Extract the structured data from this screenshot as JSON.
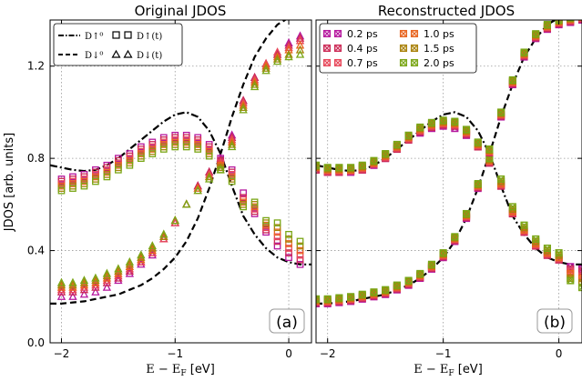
{
  "figure": {
    "ylabel": "JDOS [arb. units]",
    "xlabel": "E − E",
    "xlabel_sub": "F",
    "xlabel_unit": " [eV]"
  },
  "chart_data": [
    {
      "type": "scatter",
      "title": "Original JDOS",
      "panel_label": "(a)",
      "xlim": [
        -2.1,
        0.2
      ],
      "ylim": [
        0.0,
        1.4
      ],
      "xticks": [
        -2,
        -1,
        0
      ],
      "yticks": [
        0.0,
        0.4,
        0.8,
        1.2
      ],
      "grid": true,
      "legend_position": "top-left",
      "legend": [
        {
          "label": "D↑⁰",
          "style": "dashdot"
        },
        {
          "label": "D↓⁰",
          "style": "dashed"
        },
        {
          "label": "D↑(t)",
          "marker": "square"
        },
        {
          "label": "D↓(t)",
          "marker": "triangle"
        }
      ],
      "x": [
        -2.0,
        -1.9,
        -1.8,
        -1.7,
        -1.6,
        -1.5,
        -1.4,
        -1.3,
        -1.2,
        -1.1,
        -1.0,
        -0.9,
        -0.8,
        -0.7,
        -0.6,
        -0.5,
        -0.4,
        -0.3,
        -0.2,
        -0.1,
        0.0,
        0.1
      ],
      "series": [
        {
          "name": "0.2 ps",
          "color": "#b5179e",
          "up": [
            0.71,
            0.72,
            0.73,
            0.75,
            0.77,
            0.8,
            0.82,
            0.85,
            0.87,
            0.89,
            0.9,
            0.9,
            0.89,
            0.86,
            0.8,
            0.75,
            0.65,
            0.56,
            0.48,
            0.42,
            0.37,
            0.34
          ],
          "down": [
            0.2,
            0.2,
            0.21,
            0.22,
            0.24,
            0.27,
            0.3,
            0.34,
            0.38,
            0.45,
            0.52,
            0.6,
            0.68,
            0.74,
            0.8,
            0.9,
            1.05,
            1.15,
            1.2,
            1.25,
            1.3,
            1.33
          ]
        },
        {
          "name": "0.4 ps",
          "color": "#cc2a56",
          "up": [
            0.7,
            0.71,
            0.72,
            0.74,
            0.76,
            0.79,
            0.81,
            0.84,
            0.86,
            0.88,
            0.89,
            0.89,
            0.88,
            0.85,
            0.79,
            0.74,
            0.63,
            0.57,
            0.49,
            0.44,
            0.39,
            0.36
          ],
          "down": [
            0.22,
            0.22,
            0.23,
            0.24,
            0.26,
            0.28,
            0.31,
            0.35,
            0.39,
            0.45,
            0.52,
            0.6,
            0.68,
            0.74,
            0.79,
            0.89,
            1.05,
            1.15,
            1.21,
            1.25,
            1.29,
            1.32
          ]
        },
        {
          "name": "0.7 ps",
          "color": "#e8475a",
          "up": [
            0.69,
            0.7,
            0.71,
            0.73,
            0.75,
            0.78,
            0.8,
            0.83,
            0.85,
            0.87,
            0.88,
            0.88,
            0.87,
            0.84,
            0.78,
            0.73,
            0.62,
            0.58,
            0.5,
            0.46,
            0.41,
            0.38
          ],
          "down": [
            0.23,
            0.23,
            0.24,
            0.25,
            0.27,
            0.29,
            0.32,
            0.35,
            0.39,
            0.45,
            0.52,
            0.6,
            0.67,
            0.73,
            0.78,
            0.88,
            1.04,
            1.14,
            1.21,
            1.26,
            1.28,
            1.31
          ]
        },
        {
          "name": "1.0 ps",
          "color": "#e8641e",
          "up": [
            0.68,
            0.69,
            0.7,
            0.72,
            0.74,
            0.77,
            0.79,
            0.82,
            0.84,
            0.86,
            0.87,
            0.87,
            0.86,
            0.83,
            0.77,
            0.72,
            0.61,
            0.59,
            0.51,
            0.48,
            0.43,
            0.4
          ],
          "down": [
            0.24,
            0.24,
            0.25,
            0.26,
            0.28,
            0.3,
            0.33,
            0.36,
            0.4,
            0.46,
            0.53,
            0.6,
            0.67,
            0.72,
            0.77,
            0.87,
            1.03,
            1.13,
            1.2,
            1.24,
            1.27,
            1.29
          ]
        },
        {
          "name": "1.5 ps",
          "color": "#a9820a",
          "up": [
            0.67,
            0.68,
            0.69,
            0.71,
            0.73,
            0.76,
            0.78,
            0.81,
            0.83,
            0.85,
            0.86,
            0.86,
            0.85,
            0.82,
            0.76,
            0.71,
            0.6,
            0.6,
            0.52,
            0.5,
            0.45,
            0.42
          ],
          "down": [
            0.25,
            0.25,
            0.26,
            0.27,
            0.29,
            0.31,
            0.34,
            0.37,
            0.41,
            0.46,
            0.53,
            0.6,
            0.66,
            0.72,
            0.76,
            0.86,
            1.02,
            1.12,
            1.19,
            1.23,
            1.25,
            1.27
          ]
        },
        {
          "name": "2.0 ps",
          "color": "#7aa616",
          "up": [
            0.66,
            0.67,
            0.68,
            0.7,
            0.72,
            0.75,
            0.77,
            0.8,
            0.82,
            0.84,
            0.85,
            0.85,
            0.84,
            0.81,
            0.75,
            0.7,
            0.59,
            0.61,
            0.53,
            0.52,
            0.47,
            0.44
          ],
          "down": [
            0.26,
            0.26,
            0.27,
            0.28,
            0.3,
            0.32,
            0.35,
            0.38,
            0.42,
            0.47,
            0.53,
            0.6,
            0.66,
            0.71,
            0.75,
            0.85,
            1.01,
            1.11,
            1.18,
            1.22,
            1.24,
            1.25
          ]
        }
      ],
      "reference_curves": {
        "x": [
          -2.1,
          -2.0,
          -1.9,
          -1.8,
          -1.7,
          -1.6,
          -1.5,
          -1.4,
          -1.3,
          -1.2,
          -1.1,
          -1.0,
          -0.9,
          -0.8,
          -0.7,
          -0.6,
          -0.5,
          -0.4,
          -0.3,
          -0.2,
          -0.1,
          0.0,
          0.1,
          0.2
        ],
        "up": [
          0.77,
          0.76,
          0.75,
          0.745,
          0.75,
          0.77,
          0.8,
          0.84,
          0.88,
          0.92,
          0.96,
          0.99,
          1.0,
          0.98,
          0.92,
          0.82,
          0.68,
          0.55,
          0.47,
          0.41,
          0.37,
          0.35,
          0.34,
          0.34
        ],
        "down": [
          0.17,
          0.17,
          0.175,
          0.18,
          0.19,
          0.2,
          0.21,
          0.23,
          0.25,
          0.28,
          0.32,
          0.37,
          0.44,
          0.54,
          0.67,
          0.82,
          0.98,
          1.12,
          1.24,
          1.32,
          1.38,
          1.41,
          1.42,
          1.43
        ]
      }
    },
    {
      "type": "scatter",
      "title": "Reconstructed JDOS",
      "panel_label": "(b)",
      "xlim": [
        -2.1,
        0.2
      ],
      "ylim": [
        0.0,
        1.4
      ],
      "xticks": [
        -2,
        -1,
        0
      ],
      "yticks": [
        0.0,
        0.4,
        0.8,
        1.2
      ],
      "grid": true,
      "legend_position": "top-left",
      "legend": [
        {
          "label": "0.2 ps",
          "color": "#b5179e"
        },
        {
          "label": "0.4 ps",
          "color": "#cc2a56"
        },
        {
          "label": "0.7 ps",
          "color": "#e8475a"
        },
        {
          "label": "1.0 ps",
          "color": "#e8641e"
        },
        {
          "label": "1.5 ps",
          "color": "#a9820a"
        },
        {
          "label": "2.0 ps",
          "color": "#7aa616"
        }
      ],
      "x": [
        -2.1,
        -2.0,
        -1.9,
        -1.8,
        -1.7,
        -1.6,
        -1.5,
        -1.4,
        -1.3,
        -1.2,
        -1.1,
        -1.0,
        -0.9,
        -0.8,
        -0.7,
        -0.6,
        -0.5,
        -0.4,
        -0.3,
        -0.2,
        -0.1,
        0.0,
        0.1,
        0.2
      ],
      "series": [
        {
          "name": "0.2 ps",
          "color": "#b5179e",
          "up": [
            0.75,
            0.74,
            0.74,
            0.74,
            0.75,
            0.77,
            0.8,
            0.84,
            0.88,
            0.91,
            0.93,
            0.94,
            0.93,
            0.9,
            0.85,
            0.78,
            0.68,
            0.56,
            0.48,
            0.42,
            0.38,
            0.36,
            0.33,
            0.32
          ],
          "down": [
            0.17,
            0.17,
            0.175,
            0.18,
            0.19,
            0.2,
            0.21,
            0.23,
            0.25,
            0.28,
            0.32,
            0.37,
            0.44,
            0.54,
            0.67,
            0.82,
            0.98,
            1.12,
            1.24,
            1.32,
            1.36,
            1.38,
            1.39,
            1.4
          ]
        },
        {
          "name": "0.4 ps",
          "color": "#cc2a56",
          "up": [
            0.75,
            0.74,
            0.74,
            0.745,
            0.75,
            0.775,
            0.8,
            0.84,
            0.88,
            0.915,
            0.935,
            0.945,
            0.94,
            0.905,
            0.85,
            0.78,
            0.68,
            0.56,
            0.48,
            0.42,
            0.38,
            0.36,
            0.32,
            0.31
          ]
        },
        {
          "name": "0.7 ps",
          "color": "#e8475a",
          "up": [
            0.76,
            0.745,
            0.745,
            0.745,
            0.755,
            0.775,
            0.805,
            0.845,
            0.885,
            0.92,
            0.94,
            0.95,
            0.945,
            0.91,
            0.855,
            0.785,
            0.685,
            0.565,
            0.485,
            0.425,
            0.385,
            0.365,
            0.31,
            0.29
          ]
        },
        {
          "name": "1.0 ps",
          "color": "#e8641e",
          "up": [
            0.76,
            0.75,
            0.75,
            0.75,
            0.76,
            0.78,
            0.81,
            0.85,
            0.89,
            0.925,
            0.945,
            0.955,
            0.95,
            0.915,
            0.86,
            0.79,
            0.69,
            0.57,
            0.49,
            0.43,
            0.39,
            0.37,
            0.3,
            0.28
          ]
        },
        {
          "name": "1.5 ps",
          "color": "#a9820a",
          "up": [
            0.765,
            0.755,
            0.755,
            0.755,
            0.765,
            0.785,
            0.815,
            0.855,
            0.895,
            0.93,
            0.95,
            0.96,
            0.955,
            0.92,
            0.865,
            0.795,
            0.7,
            0.58,
            0.5,
            0.44,
            0.4,
            0.38,
            0.28,
            0.26
          ]
        },
        {
          "name": "2.0 ps",
          "color": "#7aa616",
          "up": [
            0.77,
            0.76,
            0.76,
            0.76,
            0.77,
            0.79,
            0.82,
            0.86,
            0.9,
            0.935,
            0.955,
            0.965,
            0.96,
            0.925,
            0.87,
            0.8,
            0.71,
            0.59,
            0.51,
            0.45,
            0.41,
            0.39,
            0.27,
            0.24
          ]
        }
      ],
      "reference_curves": {
        "x": [
          -2.1,
          -2.0,
          -1.9,
          -1.8,
          -1.7,
          -1.6,
          -1.5,
          -1.4,
          -1.3,
          -1.2,
          -1.1,
          -1.0,
          -0.9,
          -0.8,
          -0.7,
          -0.6,
          -0.5,
          -0.4,
          -0.3,
          -0.2,
          -0.1,
          0.0,
          0.1,
          0.2
        ],
        "up": [
          0.77,
          0.76,
          0.75,
          0.745,
          0.75,
          0.77,
          0.8,
          0.84,
          0.88,
          0.92,
          0.96,
          0.99,
          1.0,
          0.98,
          0.92,
          0.82,
          0.68,
          0.55,
          0.47,
          0.41,
          0.37,
          0.35,
          0.34,
          0.34
        ],
        "down": [
          0.17,
          0.17,
          0.175,
          0.18,
          0.19,
          0.2,
          0.21,
          0.23,
          0.25,
          0.28,
          0.32,
          0.37,
          0.44,
          0.54,
          0.67,
          0.82,
          0.98,
          1.12,
          1.24,
          1.32,
          1.38,
          1.41,
          1.42,
          1.43
        ]
      }
    }
  ]
}
